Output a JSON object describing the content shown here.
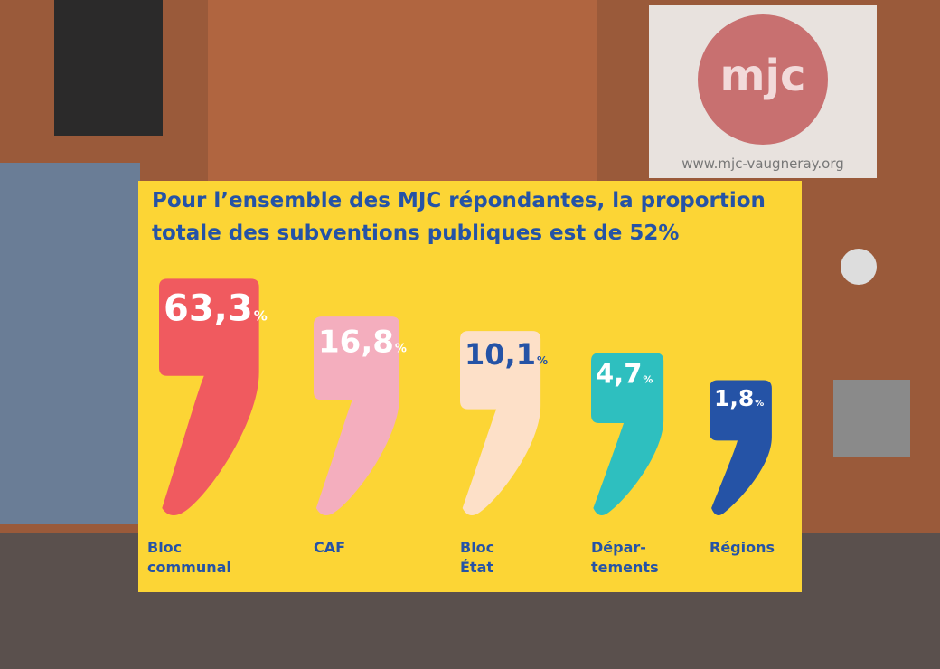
{
  "background": {
    "sign_logo": "mjc",
    "sign_url": "www.mjc-vaugneray.org"
  },
  "chart_data": {
    "type": "comma-bar",
    "title": "Pour l’ensemble des MJC répondantes, la proportion totale des subventions publiques est de 52%",
    "categories": [
      "Bloc\ncommunal",
      "CAF",
      "Bloc\nÉtat",
      "Dépar-\ntements",
      "Régions"
    ],
    "values": [
      63.3,
      16.8,
      10.1,
      4.7,
      1.8
    ],
    "value_labels": [
      "63,3",
      "16,8",
      "10,1",
      "4,7",
      "1,8"
    ],
    "unit": "%",
    "colors": [
      "#f05a5f",
      "#f4aebe",
      "#fde0c8",
      "#2ebfbf",
      "#2553a6"
    ],
    "label_colors": [
      "#ffffff",
      "#ffffff",
      "#2553a6",
      "#ffffff",
      "#ffffff"
    ],
    "log_scale": true,
    "ylim": [
      1,
      100
    ]
  }
}
